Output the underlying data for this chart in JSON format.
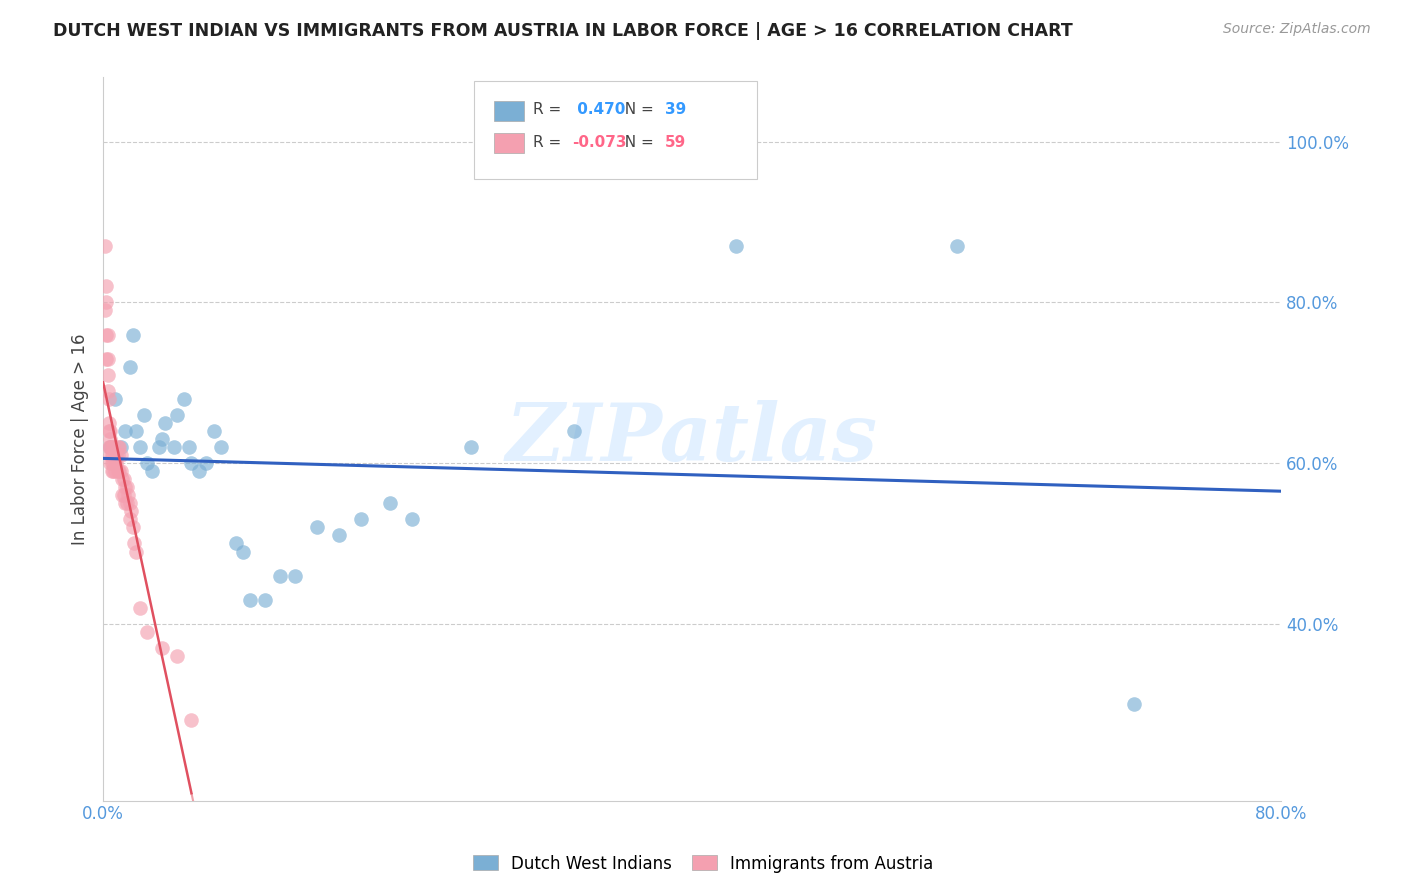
{
  "title": "DUTCH WEST INDIAN VS IMMIGRANTS FROM AUSTRIA IN LABOR FORCE | AGE > 16 CORRELATION CHART",
  "source_text": "Source: ZipAtlas.com",
  "ylabel": "In Labor Force | Age > 16",
  "ytick_labels": [
    "100.0%",
    "80.0%",
    "60.0%",
    "40.0%"
  ],
  "ytick_values": [
    1.0,
    0.8,
    0.6,
    0.4
  ],
  "xlim": [
    0.0,
    0.8
  ],
  "ylim": [
    0.18,
    1.08
  ],
  "legend_blue_label": "Dutch West Indians",
  "legend_pink_label": "Immigrants from Austria",
  "r_blue": 0.47,
  "n_blue": 39,
  "r_pink": -0.073,
  "n_pink": 59,
  "blue_color": "#7BAFD4",
  "pink_color": "#F4A0B0",
  "trend_blue_color": "#3060C0",
  "trend_pink_color": "#E05060",
  "trend_pink_dashed_color": "#F0A0A8",
  "blue_points_x": [
    0.005,
    0.008,
    0.012,
    0.015,
    0.018,
    0.02,
    0.022,
    0.025,
    0.028,
    0.03,
    0.033,
    0.038,
    0.04,
    0.042,
    0.048,
    0.05,
    0.055,
    0.058,
    0.06,
    0.065,
    0.07,
    0.075,
    0.08,
    0.09,
    0.095,
    0.1,
    0.11,
    0.12,
    0.13,
    0.145,
    0.16,
    0.175,
    0.195,
    0.21,
    0.25,
    0.32,
    0.43,
    0.58,
    0.7
  ],
  "blue_points_y": [
    0.62,
    0.68,
    0.62,
    0.64,
    0.72,
    0.76,
    0.64,
    0.62,
    0.66,
    0.6,
    0.59,
    0.62,
    0.63,
    0.65,
    0.62,
    0.66,
    0.68,
    0.62,
    0.6,
    0.59,
    0.6,
    0.64,
    0.62,
    0.5,
    0.49,
    0.43,
    0.43,
    0.46,
    0.46,
    0.52,
    0.51,
    0.53,
    0.55,
    0.53,
    0.62,
    0.64,
    0.87,
    0.87,
    0.3
  ],
  "pink_points_x": [
    0.001,
    0.001,
    0.002,
    0.002,
    0.002,
    0.002,
    0.003,
    0.003,
    0.003,
    0.003,
    0.004,
    0.004,
    0.004,
    0.004,
    0.005,
    0.005,
    0.005,
    0.005,
    0.005,
    0.006,
    0.006,
    0.006,
    0.006,
    0.007,
    0.007,
    0.007,
    0.007,
    0.008,
    0.008,
    0.008,
    0.009,
    0.009,
    0.01,
    0.01,
    0.01,
    0.011,
    0.011,
    0.012,
    0.012,
    0.013,
    0.013,
    0.014,
    0.014,
    0.015,
    0.015,
    0.016,
    0.016,
    0.017,
    0.018,
    0.018,
    0.019,
    0.02,
    0.021,
    0.022,
    0.025,
    0.03,
    0.04,
    0.05,
    0.06
  ],
  "pink_points_y": [
    0.87,
    0.79,
    0.82,
    0.8,
    0.76,
    0.73,
    0.76,
    0.73,
    0.71,
    0.69,
    0.68,
    0.65,
    0.64,
    0.62,
    0.64,
    0.63,
    0.62,
    0.61,
    0.6,
    0.62,
    0.61,
    0.6,
    0.59,
    0.62,
    0.61,
    0.6,
    0.59,
    0.61,
    0.6,
    0.59,
    0.61,
    0.6,
    0.62,
    0.61,
    0.59,
    0.62,
    0.59,
    0.61,
    0.59,
    0.58,
    0.56,
    0.58,
    0.56,
    0.57,
    0.55,
    0.57,
    0.55,
    0.56,
    0.55,
    0.53,
    0.54,
    0.52,
    0.5,
    0.49,
    0.42,
    0.39,
    0.37,
    0.36,
    0.28
  ]
}
